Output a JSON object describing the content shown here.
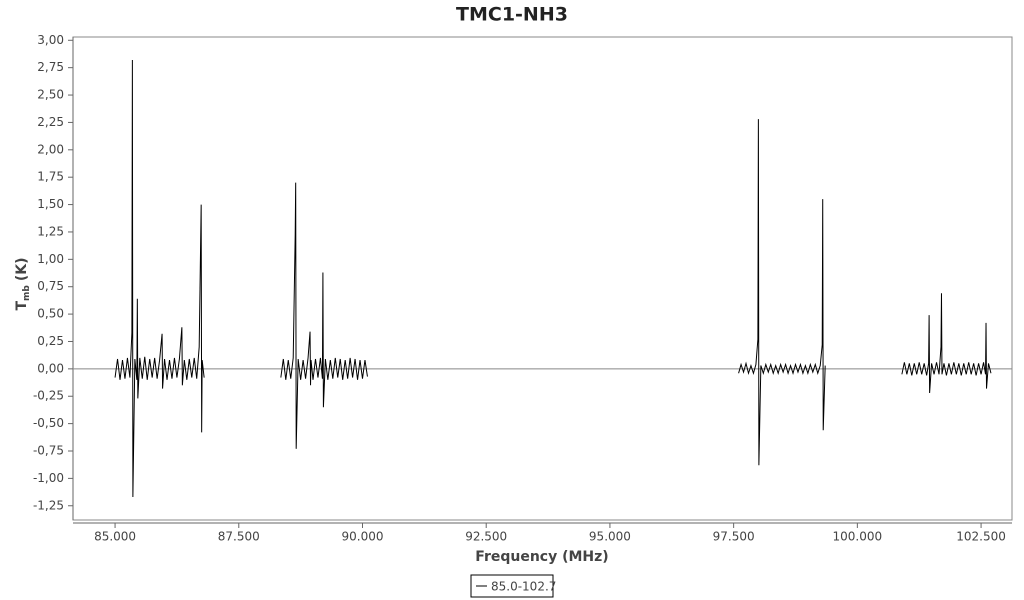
{
  "chart_data": {
    "type": "line",
    "title": "TMC1-NH3",
    "x_label": "Frequency (MHz)",
    "y_label": "T",
    "y_label_sub": "mb",
    "y_label_unit": "(K)",
    "xlim": [
      84150,
      103125
    ],
    "ylim": [
      -1.38,
      3.03
    ],
    "xticks": [
      {
        "value": 85000,
        "label": "85.000"
      },
      {
        "value": 87500,
        "label": "87.500"
      },
      {
        "value": 90000,
        "label": "90.000"
      },
      {
        "value": 92500,
        "label": "92.500"
      },
      {
        "value": 95000,
        "label": "95.000"
      },
      {
        "value": 97500,
        "label": "97.500"
      },
      {
        "value": 100000,
        "label": "100.000"
      },
      {
        "value": 102500,
        "label": "102.500"
      }
    ],
    "yticks": [
      {
        "value": 3,
        "label": "3,00"
      },
      {
        "value": 2.75,
        "label": "2,75"
      },
      {
        "value": 2.5,
        "label": "2,50"
      },
      {
        "value": 2.25,
        "label": "2,25"
      },
      {
        "value": 2,
        "label": "2,00"
      },
      {
        "value": 1.75,
        "label": "1,75"
      },
      {
        "value": 1.5,
        "label": "1,50"
      },
      {
        "value": 1.25,
        "label": "1,25"
      },
      {
        "value": 1,
        "label": "1,00"
      },
      {
        "value": 0.75,
        "label": "0,75"
      },
      {
        "value": 0.5,
        "label": "0,50"
      },
      {
        "value": 0.25,
        "label": "0,25"
      },
      {
        "value": 0,
        "label": "0,00"
      },
      {
        "value": -0.25,
        "label": "-0,25"
      },
      {
        "value": -0.5,
        "label": "-0,50"
      },
      {
        "value": -0.75,
        "label": "-0,75"
      },
      {
        "value": -1,
        "label": "-1,00"
      },
      {
        "value": -1.25,
        "label": "-1,25"
      }
    ],
    "zero_line": true,
    "legend": "bottom",
    "x": [
      85000,
      85050,
      85100,
      85150,
      85200,
      85250,
      85300,
      85340,
      85350,
      85360,
      85400,
      85440,
      85450,
      85460,
      85500,
      85550,
      85600,
      85650,
      85700,
      85750,
      85800,
      85850,
      85900,
      85950,
      85960,
      86000,
      86050,
      86100,
      86150,
      86200,
      86250,
      86300,
      86350,
      86360,
      86400,
      86450,
      86500,
      86550,
      86600,
      86650,
      86700,
      86740,
      86750,
      86760,
      86800,
      87500,
      88350,
      88400,
      88450,
      88500,
      88550,
      88600,
      88640,
      88650,
      88660,
      88700,
      88750,
      88800,
      88850,
      88900,
      88940,
      88950,
      88960,
      89000,
      89050,
      89100,
      89150,
      89190,
      89200,
      89210,
      89250,
      89300,
      89350,
      89400,
      89450,
      89500,
      89550,
      89600,
      89650,
      89700,
      89750,
      89800,
      89850,
      89900,
      89950,
      90000,
      90050,
      90100,
      93750,
      97600,
      97650,
      97700,
      97750,
      97800,
      97850,
      97900,
      97950,
      97990,
      98000,
      98010,
      98050,
      98100,
      98150,
      98200,
      98250,
      98300,
      98350,
      98400,
      98450,
      98500,
      98550,
      98600,
      98650,
      98700,
      98750,
      98800,
      98850,
      98900,
      98950,
      99000,
      99050,
      99100,
      99150,
      99200,
      99250,
      99290,
      99300,
      99310,
      99350,
      100100,
      100900,
      100950,
      101000,
      101050,
      101100,
      101150,
      101200,
      101250,
      101300,
      101350,
      101400,
      101440,
      101450,
      101460,
      101500,
      101550,
      101600,
      101650,
      101690,
      101700,
      101710,
      101750,
      101800,
      101850,
      101900,
      101950,
      102000,
      102050,
      102100,
      102150,
      102200,
      102250,
      102300,
      102350,
      102400,
      102450,
      102500,
      102550,
      102590,
      102600,
      102610,
      102650,
      102700
    ],
    "series": [
      {
        "name": "85.0-102.7",
        "color": "#000000",
        "values": [
          -0.08,
          0.09,
          -0.1,
          0.08,
          -0.09,
          0.1,
          -0.08,
          0.33,
          2.82,
          -1.17,
          0.09,
          -0.1,
          0.64,
          -0.27,
          0.1,
          -0.09,
          0.11,
          -0.1,
          0.09,
          -0.08,
          0.1,
          -0.09,
          0.08,
          0.32,
          -0.18,
          0.09,
          -0.1,
          0.08,
          -0.09,
          0.1,
          -0.08,
          0.09,
          0.38,
          -0.15,
          0.08,
          -0.1,
          0.09,
          -0.08,
          0.1,
          -0.09,
          0.2,
          1.5,
          -0.58,
          0.08,
          -0.08,
          null,
          -0.08,
          0.09,
          -0.1,
          0.08,
          -0.09,
          0.1,
          1.22,
          1.7,
          -0.73,
          0.09,
          -0.1,
          0.08,
          -0.09,
          0.1,
          0.34,
          -0.15,
          0.08,
          -0.1,
          0.09,
          -0.08,
          0.1,
          -0.09,
          0.88,
          -0.35,
          0.09,
          -0.1,
          0.08,
          -0.09,
          0.1,
          -0.08,
          0.09,
          -0.1,
          0.08,
          -0.09,
          0.1,
          -0.08,
          0.09,
          -0.1,
          0.08,
          -0.09,
          0.08,
          -0.07,
          null,
          -0.04,
          0.04,
          -0.03,
          0.05,
          -0.04,
          0.03,
          -0.04,
          0.04,
          0.27,
          2.28,
          -0.88,
          0.03,
          -0.04,
          0.04,
          -0.03,
          0.04,
          -0.04,
          0.03,
          -0.04,
          0.04,
          -0.03,
          0.04,
          -0.04,
          0.03,
          -0.04,
          0.04,
          -0.03,
          0.04,
          -0.04,
          0.03,
          -0.04,
          0.04,
          -0.03,
          0.04,
          -0.04,
          0.03,
          0.22,
          1.55,
          -0.56,
          0.03,
          null,
          -0.05,
          0.06,
          -0.05,
          0.05,
          -0.06,
          0.05,
          -0.05,
          0.06,
          -0.05,
          0.05,
          -0.06,
          0.05,
          0.49,
          -0.22,
          0.05,
          -0.05,
          0.06,
          -0.05,
          0.2,
          0.69,
          -0.05,
          0.05,
          -0.06,
          0.05,
          -0.05,
          0.06,
          -0.05,
          0.05,
          -0.06,
          0.05,
          -0.05,
          0.06,
          -0.05,
          0.05,
          -0.06,
          0.05,
          -0.05,
          0.06,
          -0.05,
          0.42,
          -0.18,
          0.05,
          -0.04
        ]
      }
    ]
  }
}
